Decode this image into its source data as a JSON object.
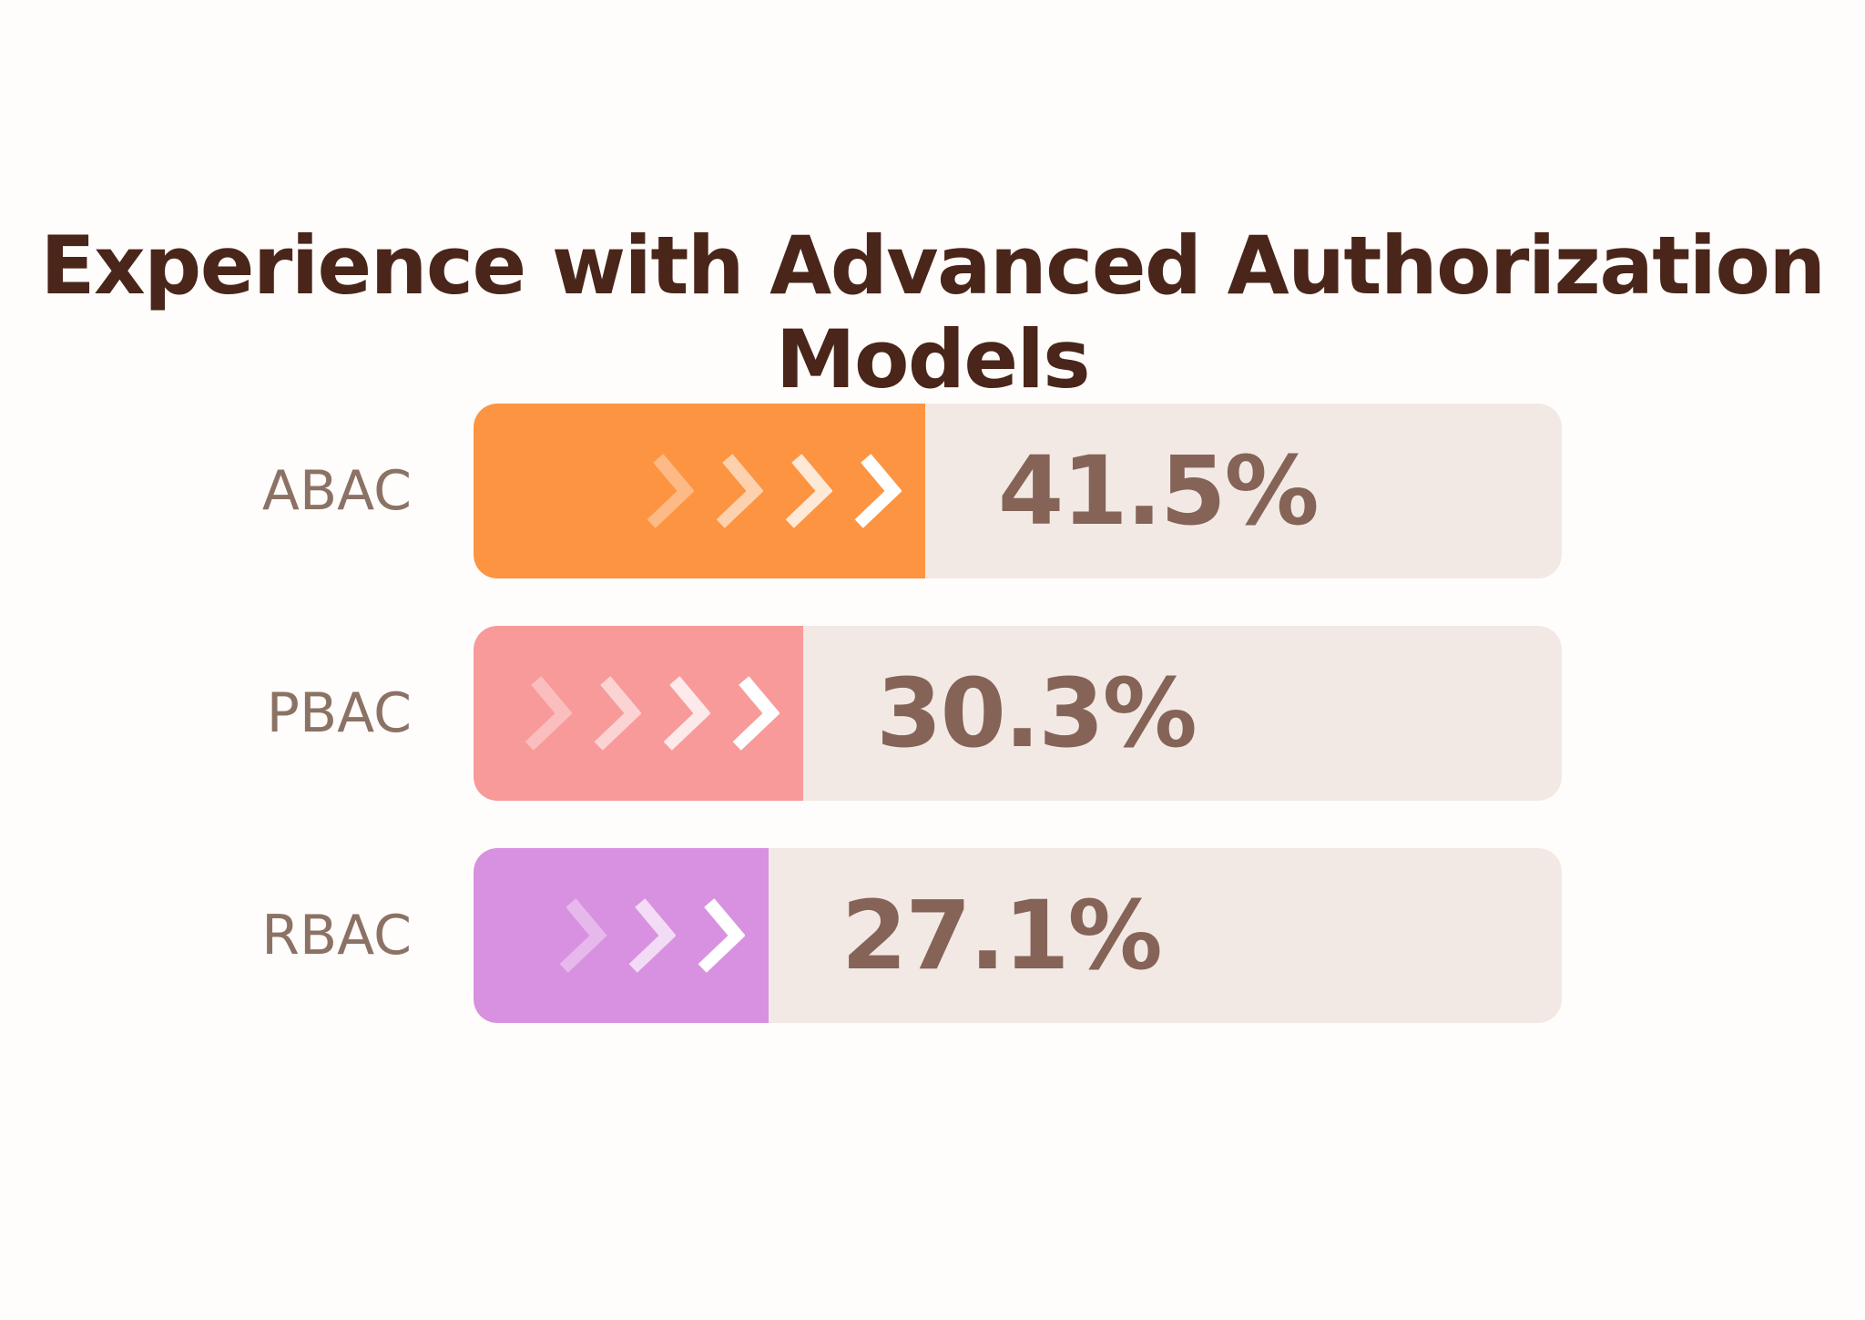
{
  "title": "Experience with Advanced Authorization Models",
  "chart_data": {
    "type": "bar",
    "orientation": "horizontal",
    "title": "Experience with Advanced Authorization Models",
    "categories": [
      "ABAC",
      "PBAC",
      "RBAC"
    ],
    "values": [
      41.5,
      30.3,
      27.1
    ],
    "value_labels": [
      "41.5%",
      "30.3%",
      "27.1%"
    ],
    "xlim": [
      0,
      100
    ],
    "grid": false,
    "legend": null,
    "track_color": "#f2e9e4",
    "bars": [
      {
        "label": "ABAC",
        "value": 41.5,
        "display": "41.5%",
        "color": "#fc9441",
        "chevrons": 4
      },
      {
        "label": "PBAC",
        "value": 30.3,
        "display": "30.3%",
        "color": "#f89a9a",
        "chevrons": 4
      },
      {
        "label": "RBAC",
        "value": 27.1,
        "display": "27.1%",
        "color": "#d891e0",
        "chevrons": 3
      }
    ]
  },
  "colors": {
    "background": "#fffdfc",
    "title_text": "#4a2519",
    "category_text": "#8b7265",
    "value_text": "#856357",
    "chevron": "#ffffff"
  }
}
